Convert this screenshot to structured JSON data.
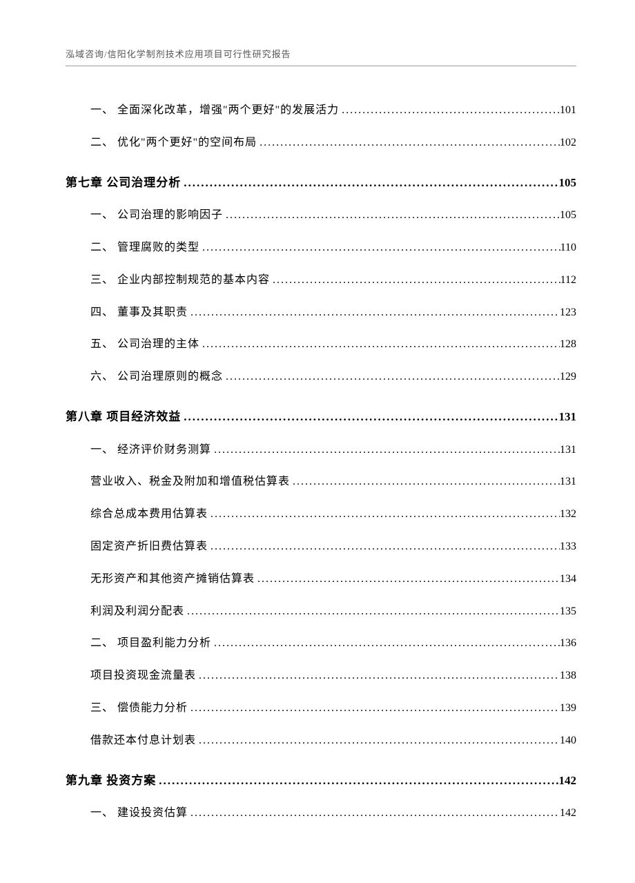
{
  "header": "泓域咨询/信阳化学制剂技术应用项目可行性研究报告",
  "dots": "........................................................................................................................................................................................................................................",
  "entries": [
    {
      "type": "sub",
      "indent": 1,
      "label": "一、 全面深化改革，增强\"两个更好\"的发展活力",
      "page": "101"
    },
    {
      "type": "sub",
      "indent": 1,
      "label": "二、 优化\"两个更好\"的空间布局",
      "page": "102"
    },
    {
      "type": "chapter",
      "indent": 0,
      "label": "第七章 公司治理分析",
      "page": "105"
    },
    {
      "type": "sub",
      "indent": 1,
      "label": "一、 公司治理的影响因子",
      "page": "105"
    },
    {
      "type": "sub",
      "indent": 1,
      "label": "二、 管理腐败的类型",
      "page": "110"
    },
    {
      "type": "sub",
      "indent": 1,
      "label": "三、 企业内部控制规范的基本内容",
      "page": "112"
    },
    {
      "type": "sub",
      "indent": 1,
      "label": "四、 董事及其职责",
      "page": "123"
    },
    {
      "type": "sub",
      "indent": 1,
      "label": "五、 公司治理的主体",
      "page": "128"
    },
    {
      "type": "sub",
      "indent": 1,
      "label": "六、 公司治理原则的概念",
      "page": "129"
    },
    {
      "type": "chapter",
      "indent": 0,
      "label": "第八章 项目经济效益",
      "page": "131"
    },
    {
      "type": "sub",
      "indent": 1,
      "label": "一、 经济评价财务测算",
      "page": "131"
    },
    {
      "type": "sub",
      "indent": 2,
      "label": "营业收入、税金及附加和增值税估算表",
      "page": "131"
    },
    {
      "type": "sub",
      "indent": 2,
      "label": "综合总成本费用估算表",
      "page": "132"
    },
    {
      "type": "sub",
      "indent": 2,
      "label": "固定资产折旧费估算表",
      "page": "133"
    },
    {
      "type": "sub",
      "indent": 2,
      "label": "无形资产和其他资产摊销估算表",
      "page": "134"
    },
    {
      "type": "sub",
      "indent": 2,
      "label": "利润及利润分配表",
      "page": "135"
    },
    {
      "type": "sub",
      "indent": 1,
      "label": "二、 项目盈利能力分析",
      "page": "136"
    },
    {
      "type": "sub",
      "indent": 2,
      "label": "项目投资现金流量表",
      "page": "138"
    },
    {
      "type": "sub",
      "indent": 1,
      "label": "三、 偿债能力分析",
      "page": "139"
    },
    {
      "type": "sub",
      "indent": 2,
      "label": "借款还本付息计划表",
      "page": "140"
    },
    {
      "type": "chapter",
      "indent": 0,
      "label": "第九章 投资方案",
      "page": "142"
    },
    {
      "type": "sub",
      "indent": 1,
      "label": "一、 建设投资估算",
      "page": "142"
    }
  ]
}
